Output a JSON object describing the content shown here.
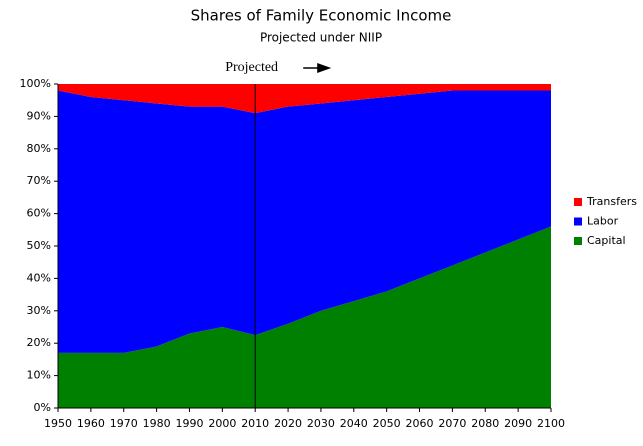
{
  "chart_data": {
    "type": "stacked_area",
    "title": "Shares of Family Economic Income",
    "subtitle": "Projected under NIIP",
    "x": [
      1950,
      1960,
      1970,
      1980,
      1990,
      2000,
      2010,
      2020,
      2030,
      2040,
      2050,
      2060,
      2070,
      2080,
      2090,
      2100
    ],
    "series": [
      {
        "name": "Capital",
        "color": "#008000",
        "values": [
          17,
          17,
          17,
          19,
          23,
          25,
          22.5,
          26,
          30,
          33,
          36,
          40,
          44,
          48,
          52,
          56
        ]
      },
      {
        "name": "Labor",
        "color": "#0000ff",
        "values": [
          81,
          79,
          78,
          75,
          70,
          68,
          68.5,
          67,
          64,
          62,
          60,
          57,
          54,
          50,
          46,
          42
        ]
      },
      {
        "name": "Transfers",
        "color": "#ff0000",
        "values": [
          2,
          4,
          5,
          6,
          7,
          7,
          9,
          7,
          6,
          5,
          4,
          3,
          2,
          2,
          2,
          2
        ]
      }
    ],
    "xlim": [
      1950,
      2100
    ],
    "xticks": [
      1950,
      1960,
      1970,
      1980,
      1990,
      2000,
      2010,
      2020,
      2030,
      2040,
      2050,
      2060,
      2070,
      2080,
      2090,
      2100
    ],
    "ylim": [
      0,
      100
    ],
    "yticks": [
      {
        "value": 0,
        "label": "0%"
      },
      {
        "value": 10,
        "label": "10%"
      },
      {
        "value": 20,
        "label": "20%"
      },
      {
        "value": 30,
        "label": "30%"
      },
      {
        "value": 40,
        "label": "40%"
      },
      {
        "value": 50,
        "label": "50%"
      },
      {
        "value": 60,
        "label": "60%"
      },
      {
        "value": 70,
        "label": "70%"
      },
      {
        "value": 80,
        "label": "80%"
      },
      {
        "value": 90,
        "label": "90%"
      },
      {
        "value": 100,
        "label": "100%"
      }
    ],
    "annotation": {
      "text": "Projected",
      "x": 2010
    },
    "legend": "right"
  }
}
